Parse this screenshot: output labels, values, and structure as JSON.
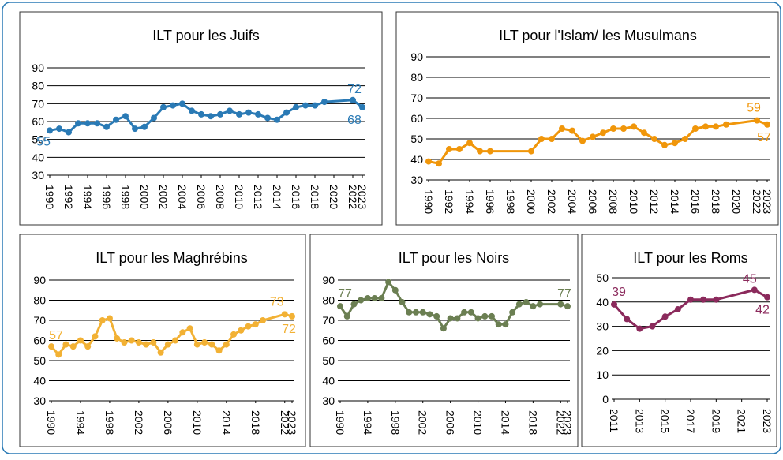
{
  "chart_data": [
    {
      "type": "line",
      "title": "ILT pour les Juifs",
      "color": "#2a7ab5",
      "x": [
        1990,
        1991,
        1992,
        1993,
        1994,
        1995,
        1996,
        1997,
        1998,
        1999,
        2000,
        2001,
        2002,
        2003,
        2004,
        2005,
        2006,
        2007,
        2008,
        2009,
        2010,
        2011,
        2012,
        2013,
        2014,
        2015,
        2016,
        2017,
        2018,
        2019,
        2022,
        2023
      ],
      "values": [
        55,
        56,
        54,
        59,
        59,
        59,
        57,
        61,
        63,
        56,
        57,
        62,
        68,
        69,
        70,
        66,
        64,
        63,
        64,
        66,
        64,
        65,
        64,
        62,
        61,
        65,
        68,
        69,
        69,
        71,
        72,
        68
      ],
      "labeled_points": [
        0,
        30,
        31
      ],
      "xlim": [
        1990,
        2023
      ],
      "xticks": [
        1990,
        1992,
        1994,
        1996,
        1998,
        2000,
        2002,
        2004,
        2006,
        2008,
        2010,
        2012,
        2014,
        2016,
        2018,
        2020,
        2022,
        2023
      ],
      "ylim": [
        30,
        90
      ],
      "yticks": [
        30,
        40,
        50,
        60,
        70,
        80,
        90
      ],
      "grid": true
    },
    {
      "type": "line",
      "title": "ILT pour l'Islam/ les Musulmans",
      "color": "#f0960a",
      "x": [
        1990,
        1991,
        1992,
        1993,
        1994,
        1995,
        1996,
        2000,
        2001,
        2002,
        2003,
        2004,
        2005,
        2006,
        2007,
        2008,
        2009,
        2010,
        2011,
        2012,
        2013,
        2014,
        2015,
        2016,
        2017,
        2018,
        2019,
        2022,
        2023
      ],
      "values": [
        39,
        38,
        45,
        45,
        48,
        44,
        44,
        44,
        50,
        50,
        55,
        54,
        49,
        51,
        53,
        55,
        55,
        56,
        53,
        50,
        47,
        48,
        50,
        55,
        56,
        56,
        57,
        59,
        57
      ],
      "labeled_points": [
        27,
        28
      ],
      "xlim": [
        1990,
        2023
      ],
      "xticks": [
        1990,
        1992,
        1994,
        1996,
        1998,
        2000,
        2002,
        2004,
        2006,
        2008,
        2010,
        2012,
        2014,
        2016,
        2018,
        2020,
        2022,
        2023
      ],
      "ylim": [
        30,
        90
      ],
      "yticks": [
        30,
        40,
        50,
        60,
        70,
        80,
        90
      ],
      "grid": true
    },
    {
      "type": "line",
      "title": "ILT pour les Maghrébins",
      "color": "#f2b134",
      "x": [
        1990,
        1991,
        1992,
        1993,
        1994,
        1995,
        1996,
        1997,
        1998,
        1999,
        2000,
        2001,
        2002,
        2003,
        2004,
        2005,
        2006,
        2007,
        2008,
        2009,
        2010,
        2011,
        2012,
        2013,
        2014,
        2015,
        2016,
        2017,
        2018,
        2019,
        2022,
        2023
      ],
      "values": [
        57,
        53,
        58,
        57,
        60,
        57,
        62,
        70,
        71,
        61,
        59,
        60,
        59,
        58,
        59,
        54,
        58,
        60,
        64,
        66,
        58,
        59,
        58,
        55,
        58,
        63,
        65,
        67,
        68,
        70,
        73,
        72
      ],
      "labeled_points": [
        0,
        30,
        31
      ],
      "xlim": [
        1990,
        2023
      ],
      "xticks": [
        1990,
        1994,
        1998,
        2002,
        2006,
        2010,
        2014,
        2018,
        2022,
        2023
      ],
      "ylim": [
        30,
        90
      ],
      "yticks": [
        30,
        40,
        50,
        60,
        70,
        80,
        90
      ],
      "grid": true
    },
    {
      "type": "line",
      "title": "ILT pour les Noirs",
      "color": "#6b7f52",
      "x": [
        1990,
        1991,
        1992,
        1993,
        1994,
        1995,
        1996,
        1997,
        1998,
        1999,
        2000,
        2001,
        2002,
        2003,
        2004,
        2005,
        2006,
        2007,
        2008,
        2009,
        2010,
        2011,
        2012,
        2013,
        2014,
        2015,
        2016,
        2017,
        2018,
        2019,
        2022,
        2023
      ],
      "values": [
        77,
        72,
        78,
        80,
        81,
        81,
        81,
        89,
        85,
        79,
        74,
        74,
        74,
        73,
        72,
        66,
        71,
        71,
        74,
        74,
        71,
        72,
        72,
        68,
        68,
        74,
        78,
        79,
        77,
        78,
        78,
        77
      ],
      "labeled_points": [
        0,
        31
      ],
      "xlim": [
        1990,
        2023
      ],
      "xticks": [
        1990,
        1994,
        1998,
        2002,
        2006,
        2010,
        2014,
        2018,
        2022,
        2023
      ],
      "ylim": [
        30,
        90
      ],
      "yticks": [
        30,
        40,
        50,
        60,
        70,
        80,
        90
      ],
      "grid": true
    },
    {
      "type": "line",
      "title": "ILT pour les Roms",
      "color": "#8b2a5c",
      "x": [
        2011,
        2012,
        2013,
        2014,
        2015,
        2016,
        2017,
        2018,
        2019,
        2022,
        2023
      ],
      "values": [
        39,
        33,
        29,
        30,
        34,
        37,
        41,
        41,
        41,
        45,
        42
      ],
      "labeled_points": [
        0,
        9,
        10
      ],
      "xlim": [
        2011,
        2023
      ],
      "xticks": [
        2011,
        2013,
        2015,
        2017,
        2019,
        2021,
        2023
      ],
      "ylim": [
        0,
        50
      ],
      "yticks": [
        0,
        10,
        20,
        30,
        40,
        50
      ],
      "grid": true
    }
  ]
}
